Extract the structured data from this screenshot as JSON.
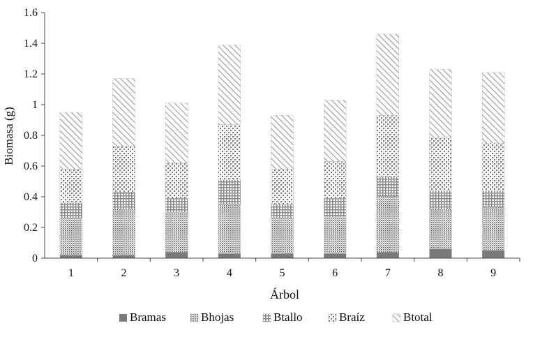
{
  "chart_data": {
    "type": "bar",
    "stacked": true,
    "xlabel": "Árbol",
    "ylabel": "Biomasa (g)",
    "ylim": [
      0,
      1.6
    ],
    "yticks": [
      "0",
      "0.2",
      "0.4",
      "0.6",
      "0.8",
      "1",
      "1.2",
      "1.4",
      "1.6"
    ],
    "categories": [
      "1",
      "2",
      "3",
      "4",
      "5",
      "6",
      "7",
      "8",
      "9"
    ],
    "grid": false,
    "legend_position": "bottom",
    "series": [
      {
        "name": "Bramas",
        "pattern": "solid",
        "color": "#7a7a7a",
        "values": [
          0.02,
          0.02,
          0.04,
          0.03,
          0.03,
          0.03,
          0.04,
          0.06,
          0.05
        ]
      },
      {
        "name": "Bhojas",
        "pattern": "dense-dots",
        "color": "#7a7a7a",
        "values": [
          0.24,
          0.3,
          0.26,
          0.32,
          0.23,
          0.24,
          0.36,
          0.26,
          0.28
        ]
      },
      {
        "name": "Btallo",
        "pattern": "grid-dots",
        "color": "#7a7a7a",
        "values": [
          0.1,
          0.11,
          0.09,
          0.16,
          0.09,
          0.12,
          0.13,
          0.12,
          0.11
        ]
      },
      {
        "name": "Braíz",
        "pattern": "diamond-dots",
        "color": "#7a7a7a",
        "values": [
          0.22,
          0.3,
          0.23,
          0.36,
          0.23,
          0.24,
          0.4,
          0.35,
          0.31
        ]
      },
      {
        "name": "Btotal",
        "pattern": "diagonal",
        "color": "#7a7a7a",
        "values": [
          0.37,
          0.44,
          0.39,
          0.52,
          0.35,
          0.4,
          0.53,
          0.44,
          0.46
        ]
      }
    ]
  }
}
